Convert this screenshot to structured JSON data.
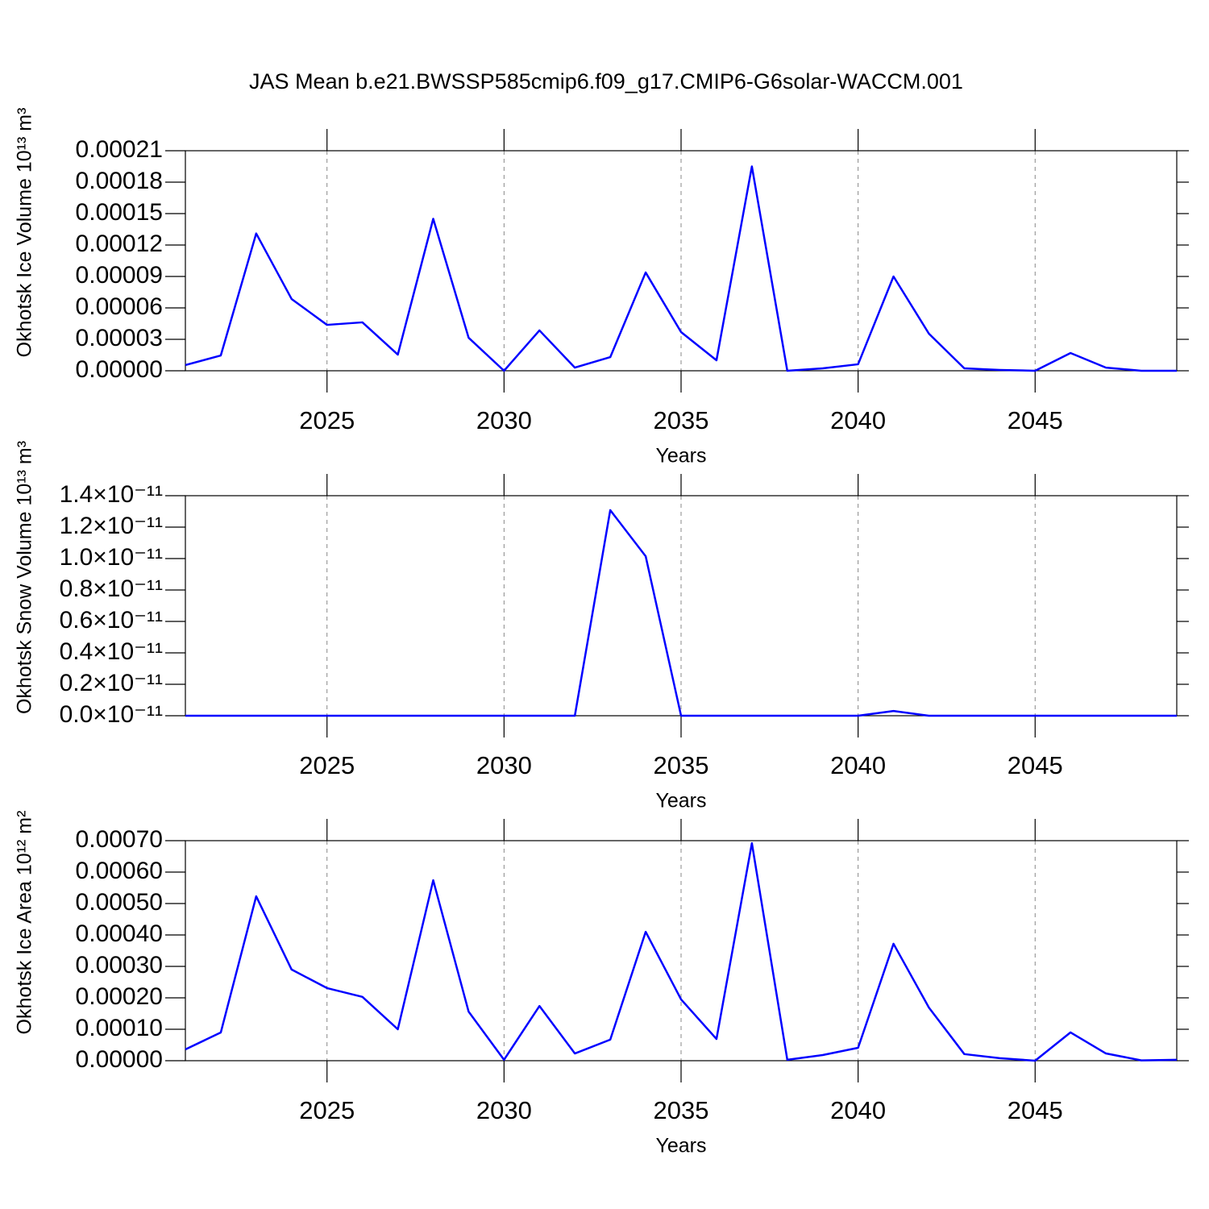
{
  "title": "JAS Mean b.e21.BWSSP585cmip6.f09_g17.CMIP6-G6solar-WACCM.001",
  "chart_data": [
    {
      "type": "line",
      "xlabel": "Years",
      "ylabel": "Okhotsk Ice Volume 10¹³ m³",
      "color": "#0000ff",
      "xgrid": true,
      "x": [
        2021,
        2022,
        2023,
        2024,
        2025,
        2026,
        2027,
        2028,
        2029,
        2030,
        2031,
        2032,
        2033,
        2034,
        2035,
        2036,
        2037,
        2038,
        2039,
        2040,
        2041,
        2042,
        2043,
        2044,
        2045,
        2046,
        2047,
        2048,
        2049
      ],
      "values": [
        5.4e-06,
        1.46e-05,
        0.000131,
        6.85e-05,
        4.38e-05,
        4.62e-05,
        1.54e-05,
        0.000145,
        3.15e-05,
        0,
        3.85e-05,
        3e-06,
        1.3e-05,
        9.38e-05,
        3.69e-05,
        1e-05,
        0.000195,
        0,
        2.3e-06,
        6.2e-06,
        9e-05,
        3.54e-05,
        2.3e-06,
        8e-07,
        0,
        1.69e-05,
        3e-06,
        0,
        0
      ],
      "xlim": [
        2021,
        2049
      ],
      "xticks": [
        2025,
        2030,
        2035,
        2040,
        2045
      ],
      "ylim": [
        0,
        0.00021
      ],
      "yticks": [
        {
          "value": 0,
          "label": "0.00000"
        },
        {
          "value": 3e-05,
          "label": "0.00003"
        },
        {
          "value": 6e-05,
          "label": "0.00006"
        },
        {
          "value": 9e-05,
          "label": "0.00009"
        },
        {
          "value": 0.00012,
          "label": "0.00012"
        },
        {
          "value": 0.00015,
          "label": "0.00015"
        },
        {
          "value": 0.00018,
          "label": "0.00018"
        },
        {
          "value": 0.00021,
          "label": "0.00021"
        }
      ]
    },
    {
      "type": "line",
      "xlabel": "Years",
      "ylabel": "Okhotsk Snow Volume 10¹³ m³",
      "color": "#0000ff",
      "xgrid": true,
      "x": [
        2021,
        2022,
        2023,
        2024,
        2025,
        2026,
        2027,
        2028,
        2029,
        2030,
        2031,
        2032,
        2033,
        2034,
        2035,
        2036,
        2037,
        2038,
        2039,
        2040,
        2041,
        2042,
        2043,
        2044,
        2045,
        2046,
        2047,
        2048,
        2049
      ],
      "values": [
        0,
        0,
        0,
        0,
        0,
        0,
        0,
        0,
        0,
        0,
        0,
        0,
        1.308e-11,
        1.015e-11,
        0,
        0,
        0,
        0,
        0,
        0,
        3e-13,
        0,
        0,
        0,
        0,
        0,
        0,
        0,
        0
      ],
      "xlim": [
        2021,
        2049
      ],
      "xticks": [
        2025,
        2030,
        2035,
        2040,
        2045
      ],
      "ylim": [
        0,
        1.4e-11
      ],
      "yticks": [
        {
          "value": 0,
          "label": "0.0×10⁻¹¹"
        },
        {
          "value": 2e-12,
          "label": "0.2×10⁻¹¹"
        },
        {
          "value": 4e-12,
          "label": "0.4×10⁻¹¹"
        },
        {
          "value": 6e-12,
          "label": "0.6×10⁻¹¹"
        },
        {
          "value": 8e-12,
          "label": "0.8×10⁻¹¹"
        },
        {
          "value": 1e-11,
          "label": "1.0×10⁻¹¹"
        },
        {
          "value": 1.2e-11,
          "label": "1.2×10⁻¹¹"
        },
        {
          "value": 1.4e-11,
          "label": "1.4×10⁻¹¹"
        }
      ]
    },
    {
      "type": "line",
      "xlabel": "Years",
      "ylabel": "Okhotsk Ice Area 10¹² m²",
      "color": "#0000ff",
      "xgrid": true,
      "x": [
        2021,
        2022,
        2023,
        2024,
        2025,
        2026,
        2027,
        2028,
        2029,
        2030,
        2031,
        2032,
        2033,
        2034,
        2035,
        2036,
        2037,
        2038,
        2039,
        2040,
        2041,
        2042,
        2043,
        2044,
        2045,
        2046,
        2047,
        2048,
        2049
      ],
      "values": [
        3.59e-05,
        8.97e-05,
        0.000523,
        0.00029,
        0.000231,
        0.000203,
        0.0001,
        0.000574,
        0.000156,
        3e-06,
        0.000174,
        2.3e-05,
        6.7e-05,
        0.00041,
        0.000195,
        6.9e-05,
        0.000692,
        3e-06,
        1.8e-05,
        4.1e-05,
        0.000372,
        0.000169,
        2.1e-05,
        8e-06,
        0,
        9e-05,
        2.3e-05,
        1e-06,
        3e-06
      ],
      "xlim": [
        2021,
        2049
      ],
      "xticks": [
        2025,
        2030,
        2035,
        2040,
        2045
      ],
      "ylim": [
        0,
        0.0007
      ],
      "yticks": [
        {
          "value": 0,
          "label": "0.00000"
        },
        {
          "value": 0.0001,
          "label": "0.00010"
        },
        {
          "value": 0.0002,
          "label": "0.00020"
        },
        {
          "value": 0.0003,
          "label": "0.00030"
        },
        {
          "value": 0.0004,
          "label": "0.00040"
        },
        {
          "value": 0.0005,
          "label": "0.00050"
        },
        {
          "value": 0.0006,
          "label": "0.00060"
        },
        {
          "value": 0.0007,
          "label": "0.00070"
        }
      ]
    }
  ]
}
